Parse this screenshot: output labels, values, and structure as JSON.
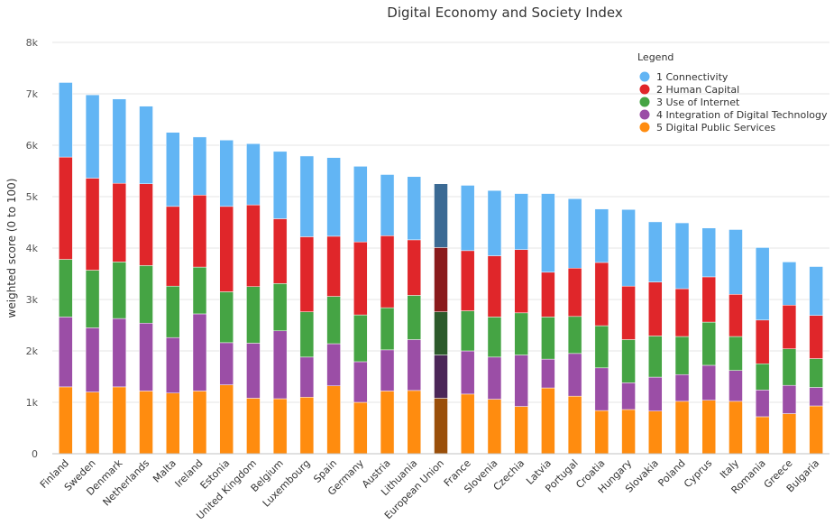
{
  "chart_data": {
    "type": "bar",
    "stacked": true,
    "title": "Digital Economy and Society Index",
    "ylabel": "weighted score (0 to 100)",
    "xlabel": "",
    "ylim": [
      0,
      8000
    ],
    "yticks": [
      0,
      1000,
      2000,
      3000,
      4000,
      5000,
      6000,
      7000,
      8000
    ],
    "ytick_labels": [
      "0",
      "1k",
      "2k",
      "3k",
      "4k",
      "5k",
      "6k",
      "7k",
      "8k"
    ],
    "grid": true,
    "legend": {
      "title": "Legend",
      "position": "top-right"
    },
    "highlight_category": "European Union",
    "categories": [
      "Finland",
      "Sweden",
      "Denmark",
      "Netherlands",
      "Malta",
      "Ireland",
      "Estonia",
      "United Kingdom",
      "Belgium",
      "Luxembourg",
      "Spain",
      "Germany",
      "Austria",
      "Lithuania",
      "European Union",
      "France",
      "Slovenia",
      "Czechia",
      "Latvia",
      "Portugal",
      "Croatia",
      "Hungary",
      "Slovakia",
      "Poland",
      "Cyprus",
      "Italy",
      "Romania",
      "Greece",
      "Bulgaria"
    ],
    "series": [
      {
        "name": "5 Digital Public Services",
        "color": "#ff8c0f",
        "highlight_color": "#9a4f0a",
        "values": [
          1300,
          1200,
          1300,
          1220,
          1180,
          1220,
          1340,
          1080,
          1070,
          1100,
          1320,
          1000,
          1220,
          1230,
          1080,
          1160,
          1060,
          920,
          1280,
          1120,
          840,
          860,
          830,
          1020,
          1040,
          1020,
          720,
          780,
          930
        ]
      },
      {
        "name": "4 Integration of Digital Technology",
        "color": "#9b4ea6",
        "highlight_color": "#4b2658",
        "values": [
          1360,
          1250,
          1330,
          1320,
          1080,
          1500,
          820,
          1070,
          1320,
          780,
          820,
          790,
          800,
          990,
          840,
          840,
          820,
          1000,
          560,
          830,
          830,
          520,
          660,
          520,
          680,
          600,
          520,
          550,
          360
        ]
      },
      {
        "name": "3 Use of Internet",
        "color": "#45a444",
        "highlight_color": "#2c5a2b",
        "values": [
          1120,
          1120,
          1100,
          1120,
          1000,
          910,
          990,
          1100,
          920,
          880,
          920,
          910,
          820,
          860,
          840,
          780,
          780,
          820,
          820,
          720,
          820,
          840,
          800,
          740,
          840,
          660,
          510,
          710,
          560
        ]
      },
      {
        "name": "2 Human Capital",
        "color": "#e0262a",
        "highlight_color": "#8a1a1c",
        "values": [
          1990,
          1790,
          1530,
          1590,
          1550,
          1400,
          1660,
          1590,
          1260,
          1460,
          1170,
          1420,
          1400,
          1080,
          1250,
          1170,
          1190,
          1230,
          870,
          940,
          1230,
          1040,
          1050,
          930,
          880,
          820,
          850,
          850,
          840
        ]
      },
      {
        "name": "1 Connectivity",
        "color": "#62b5f4",
        "highlight_color": "#3b6a94",
        "values": [
          1450,
          1620,
          1640,
          1510,
          1440,
          1130,
          1290,
          1190,
          1310,
          1570,
          1530,
          1470,
          1190,
          1230,
          1240,
          1270,
          1270,
          1090,
          1530,
          1350,
          1040,
          1490,
          1170,
          1280,
          950,
          1260,
          1410,
          840,
          950
        ]
      }
    ]
  }
}
